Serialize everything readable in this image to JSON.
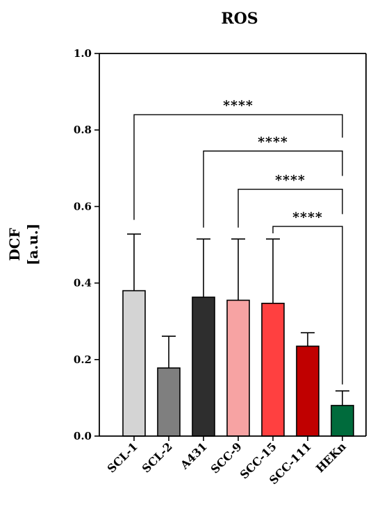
{
  "chart_data": {
    "type": "bar",
    "title": "ROS",
    "ylabel_lines": [
      "DCF",
      "[a.u.]"
    ],
    "xlabel": "",
    "ylim": [
      0,
      1.0
    ],
    "yticks": [
      "0.0",
      "0.2",
      "0.4",
      "0.6",
      "0.8",
      "1.0"
    ],
    "ytick_values": [
      0,
      0.2,
      0.4,
      0.6,
      0.8,
      1.0
    ],
    "categories": [
      "SCL-1",
      "SCL-2",
      "A431",
      "SCC-9",
      "SCC-15",
      "SCC-111",
      "HEKn"
    ],
    "values": [
      0.38,
      0.178,
      0.363,
      0.355,
      0.347,
      0.235,
      0.08
    ],
    "error_upper": [
      0.528,
      0.261,
      0.515,
      0.515,
      0.515,
      0.27,
      0.118
    ],
    "colors": [
      "#d4d4d4",
      "#7f7f7f",
      "#2e2e2e",
      "#f7a3a3",
      "#ff4040",
      "#c00000",
      "#006b3c"
    ],
    "grid": false,
    "legend": "none",
    "annotations": [
      {
        "from": "SCL-1",
        "to": "HEKn",
        "bracket_y": 0.84,
        "left_drop_to": 0.565,
        "right_drop_to": 0.78,
        "label": "****"
      },
      {
        "from": "A431",
        "to": "HEKn",
        "bracket_y": 0.745,
        "left_drop_to": 0.545,
        "right_drop_to": 0.68,
        "label": "****"
      },
      {
        "from": "SCC-9",
        "to": "HEKn",
        "bracket_y": 0.645,
        "left_drop_to": 0.545,
        "right_drop_to": 0.58,
        "label": "****"
      },
      {
        "from": "SCC-15",
        "to": "HEKn",
        "bracket_y": 0.548,
        "left_drop_to": 0.53,
        "right_drop_to": 0.135,
        "label": "****"
      }
    ]
  }
}
